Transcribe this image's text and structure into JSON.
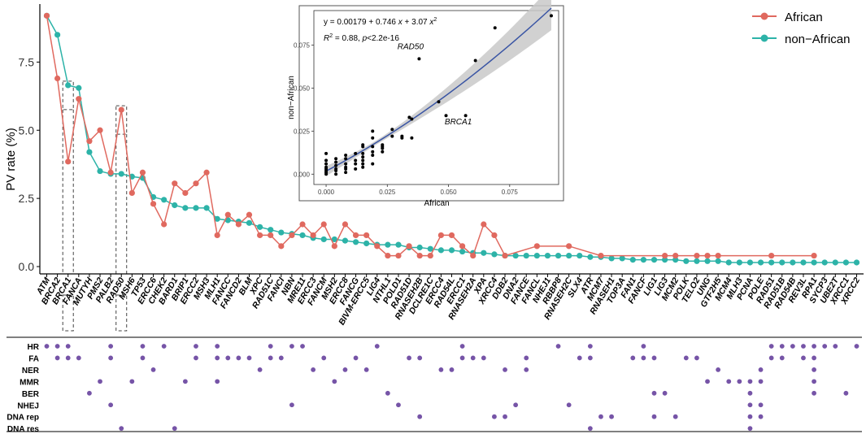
{
  "chart_data": [
    {
      "type": "line",
      "ylabel": "PV rate (%)",
      "ylim": [
        0,
        9.6
      ],
      "yticks": [
        0,
        2.5,
        5,
        7.5
      ],
      "ytick_labels": [
        "0.0",
        "2.5",
        "5.0",
        "7.5"
      ],
      "categories": [
        "ATM",
        "BRCA2",
        "BRCA1",
        "FANCA",
        "MUTYH",
        "PMS2",
        "PALB2",
        "RAD50",
        "MSH6",
        "TP53",
        "ERCC6",
        "CHEK2",
        "BARD1",
        "BRIP1",
        "ERCC2",
        "MSH3",
        "MLH1",
        "FANCC",
        "FANCD2",
        "BLM",
        "XPC",
        "RAD51C",
        "FANCI",
        "NBN",
        "MRE11",
        "ERCC3",
        "FANCM",
        "MSH2",
        "ERCC8",
        "FANCG",
        "BIVM-ERCC5",
        "LIG4",
        "NTHL1",
        "POLD1",
        "RAD51D",
        "RNASEH2B",
        "DCLRE1C",
        "ERCC4",
        "RAD54L",
        "ERCC1",
        "RNASEH2A",
        "XPA",
        "XRCC4",
        "DDB2",
        "DNA2",
        "FANCE",
        "FANCL",
        "NHEJ1",
        "RBBP8",
        "RNASEH2C",
        "SLX4",
        "ATR",
        "MCM7",
        "RNASEH1",
        "TOP3A",
        "FAN1",
        "FANCF",
        "LIG1",
        "LIG3",
        "MCM2",
        "POLK",
        "TELO2",
        "UNG",
        "GTF2H5",
        "MCM4",
        "MLH3",
        "PCNA",
        "POLE",
        "RAD51",
        "RAD51B",
        "RAD54B",
        "REV3L",
        "RPA1",
        "SYCP3",
        "UBE2T",
        "XRCC1",
        "XRCC2"
      ],
      "boxed_genes": [
        "BRCA1",
        "RAD50"
      ],
      "series": [
        {
          "name": "African",
          "color": "#E0695F",
          "values": [
            9.2,
            6.9,
            3.85,
            6.15,
            4.6,
            5.0,
            3.45,
            5.75,
            2.7,
            3.45,
            2.3,
            1.55,
            3.05,
            2.7,
            3.05,
            3.45,
            1.15,
            1.9,
            1.55,
            1.9,
            1.15,
            1.15,
            0.75,
            1.15,
            1.55,
            1.15,
            1.55,
            0.75,
            1.55,
            1.15,
            1.15,
            0.75,
            0.4,
            0.4,
            0.75,
            0.4,
            0.4,
            1.15,
            1.15,
            0.75,
            0.4,
            1.55,
            1.15,
            0.4,
            null,
            null,
            0.75,
            null,
            null,
            0.75,
            null,
            null,
            0.4,
            null,
            null,
            null,
            null,
            null,
            0.4,
            0.4,
            null,
            0.4,
            0.4,
            0.4,
            null,
            null,
            null,
            null,
            0.4,
            null,
            null,
            null,
            0.4,
            null,
            null,
            null,
            null
          ]
        },
        {
          "name": "non-African",
          "color": "#2DB3A8",
          "values": [
            9.2,
            8.5,
            6.65,
            6.55,
            4.2,
            3.5,
            3.4,
            3.4,
            3.3,
            3.25,
            2.55,
            2.45,
            2.25,
            2.15,
            2.15,
            2.15,
            1.75,
            1.7,
            1.65,
            1.6,
            1.45,
            1.35,
            1.25,
            1.2,
            1.15,
            1.05,
            1.0,
            1.0,
            0.95,
            0.9,
            0.85,
            0.8,
            0.8,
            0.8,
            0.7,
            0.7,
            0.65,
            0.6,
            0.6,
            0.55,
            0.5,
            0.5,
            0.45,
            0.4,
            0.4,
            0.4,
            0.4,
            0.4,
            0.4,
            0.4,
            0.4,
            0.35,
            0.35,
            0.3,
            0.3,
            0.25,
            0.25,
            0.25,
            0.25,
            0.25,
            0.2,
            0.2,
            0.2,
            0.2,
            0.15,
            0.15,
            0.15,
            0.15,
            0.15,
            0.15,
            0.15,
            0.15,
            0.15,
            0.15,
            0.15,
            0.15,
            0.15
          ]
        }
      ]
    },
    {
      "type": "scatter",
      "xlabel": "African",
      "ylabel": "non−African",
      "xlim": [
        -0.005,
        0.095
      ],
      "ylim": [
        -0.006,
        0.095
      ],
      "xticks": [
        0,
        0.025,
        0.05,
        0.075
      ],
      "xtick_labels": [
        "0.000",
        "0.025",
        "0.050",
        "0.075"
      ],
      "yticks": [
        0,
        0.025,
        0.05,
        0.075
      ],
      "ytick_labels": [
        "0.000",
        "0.025",
        "0.050",
        "0.075"
      ],
      "fit": {
        "intercept": 0.00179,
        "b1": 0.746,
        "b2": 3.07
      },
      "equation_parts": [
        "y = 0.00179 + 0.746 ",
        "x",
        " + 3.07 ",
        "x",
        "2"
      ],
      "r2_parts": [
        "R",
        "2",
        " = 0.88, ",
        "p",
        "<2.2e-16"
      ],
      "annotations": [
        {
          "label": "RAD50",
          "x": 0.0345,
          "y": 0.0725
        },
        {
          "label": "BRCA1",
          "x": 0.054,
          "y": 0.029
        }
      ],
      "points": [
        [
          0,
          0.003
        ],
        [
          0,
          0.006
        ],
        [
          0,
          0.008
        ],
        [
          0,
          0.012
        ],
        [
          0,
          0.002
        ],
        [
          0,
          0.0
        ],
        [
          0,
          0.004
        ],
        [
          0,
          0.001
        ],
        [
          0.004,
          0.0
        ],
        [
          0.004,
          0.003
        ],
        [
          0.004,
          0.005
        ],
        [
          0.004,
          0.007
        ],
        [
          0.004,
          0.009
        ],
        [
          0.004,
          0.002
        ],
        [
          0.008,
          0.006
        ],
        [
          0.008,
          0.004
        ],
        [
          0.008,
          0.009
        ],
        [
          0.008,
          0.011
        ],
        [
          0.008,
          0.003
        ],
        [
          0.008,
          0.001
        ],
        [
          0.012,
          0.008
        ],
        [
          0.012,
          0.012
        ],
        [
          0.012,
          0.003
        ],
        [
          0.012,
          0.006
        ],
        [
          0.015,
          0.016
        ],
        [
          0.015,
          0.017
        ],
        [
          0.015,
          0.012
        ],
        [
          0.015,
          0.01
        ],
        [
          0.015,
          0.008
        ],
        [
          0.015,
          0.004
        ],
        [
          0.015,
          0.006
        ],
        [
          0.019,
          0.021
        ],
        [
          0.019,
          0.016
        ],
        [
          0.019,
          0.013
        ],
        [
          0.019,
          0.011
        ],
        [
          0.019,
          0.006
        ],
        [
          0.019,
          0.025
        ],
        [
          0.023,
          0.015
        ],
        [
          0.023,
          0.016
        ],
        [
          0.023,
          0.017
        ],
        [
          0.023,
          0.013
        ],
        [
          0.027,
          0.022
        ],
        [
          0.027,
          0.026
        ],
        [
          0.031,
          0.021
        ],
        [
          0.031,
          0.022
        ],
        [
          0.034,
          0.033
        ],
        [
          0.035,
          0.021
        ],
        [
          0.035,
          0.032
        ],
        [
          0.038,
          0.067
        ],
        [
          0.046,
          0.042
        ],
        [
          0.049,
          0.034
        ],
        [
          0.057,
          0.034
        ],
        [
          0.061,
          0.066
        ],
        [
          0.069,
          0.085
        ],
        [
          0.092,
          0.092
        ]
      ]
    },
    {
      "type": "dot-matrix",
      "rows": [
        "HR",
        "FA",
        "NER",
        "MMR",
        "BER",
        "NHEJ",
        "DNA rep",
        "DNA res"
      ],
      "membership": {
        "HR": [
          0,
          1,
          2,
          6,
          9,
          11,
          14,
          16,
          21,
          23,
          24,
          31,
          39,
          48,
          51,
          56,
          68,
          69,
          70,
          71,
          72,
          73,
          74,
          76
        ],
        "FA": [
          1,
          2,
          3,
          6,
          9,
          14,
          16,
          17,
          18,
          19,
          21,
          22,
          26,
          29,
          34,
          35,
          39,
          40,
          41,
          45,
          50,
          51,
          55,
          56,
          57,
          60,
          61,
          68,
          69,
          71,
          72
        ],
        "NER": [
          10,
          20,
          25,
          28,
          30,
          37,
          38,
          43,
          45,
          63,
          67,
          72
        ],
        "MMR": [
          5,
          8,
          13,
          16,
          27,
          62,
          64,
          65,
          66,
          67,
          72
        ],
        "BER": [
          4,
          32,
          57,
          58,
          66,
          72,
          75
        ],
        "NHEJ": [
          6,
          23,
          33,
          44,
          49,
          66,
          67
        ],
        "DNA rep": [
          35,
          42,
          43,
          52,
          53,
          57,
          59,
          66,
          67
        ],
        "DNA res": [
          7,
          12,
          51,
          66
        ]
      }
    }
  ],
  "legend": [
    {
      "label": "African",
      "color": "#E0695F"
    },
    {
      "label": "non−African",
      "color": "#2DB3A8"
    }
  ],
  "colors": {
    "dot": "#7654A7",
    "fit_line": "#3A55A4",
    "ribbon": "#C9C9C9"
  }
}
